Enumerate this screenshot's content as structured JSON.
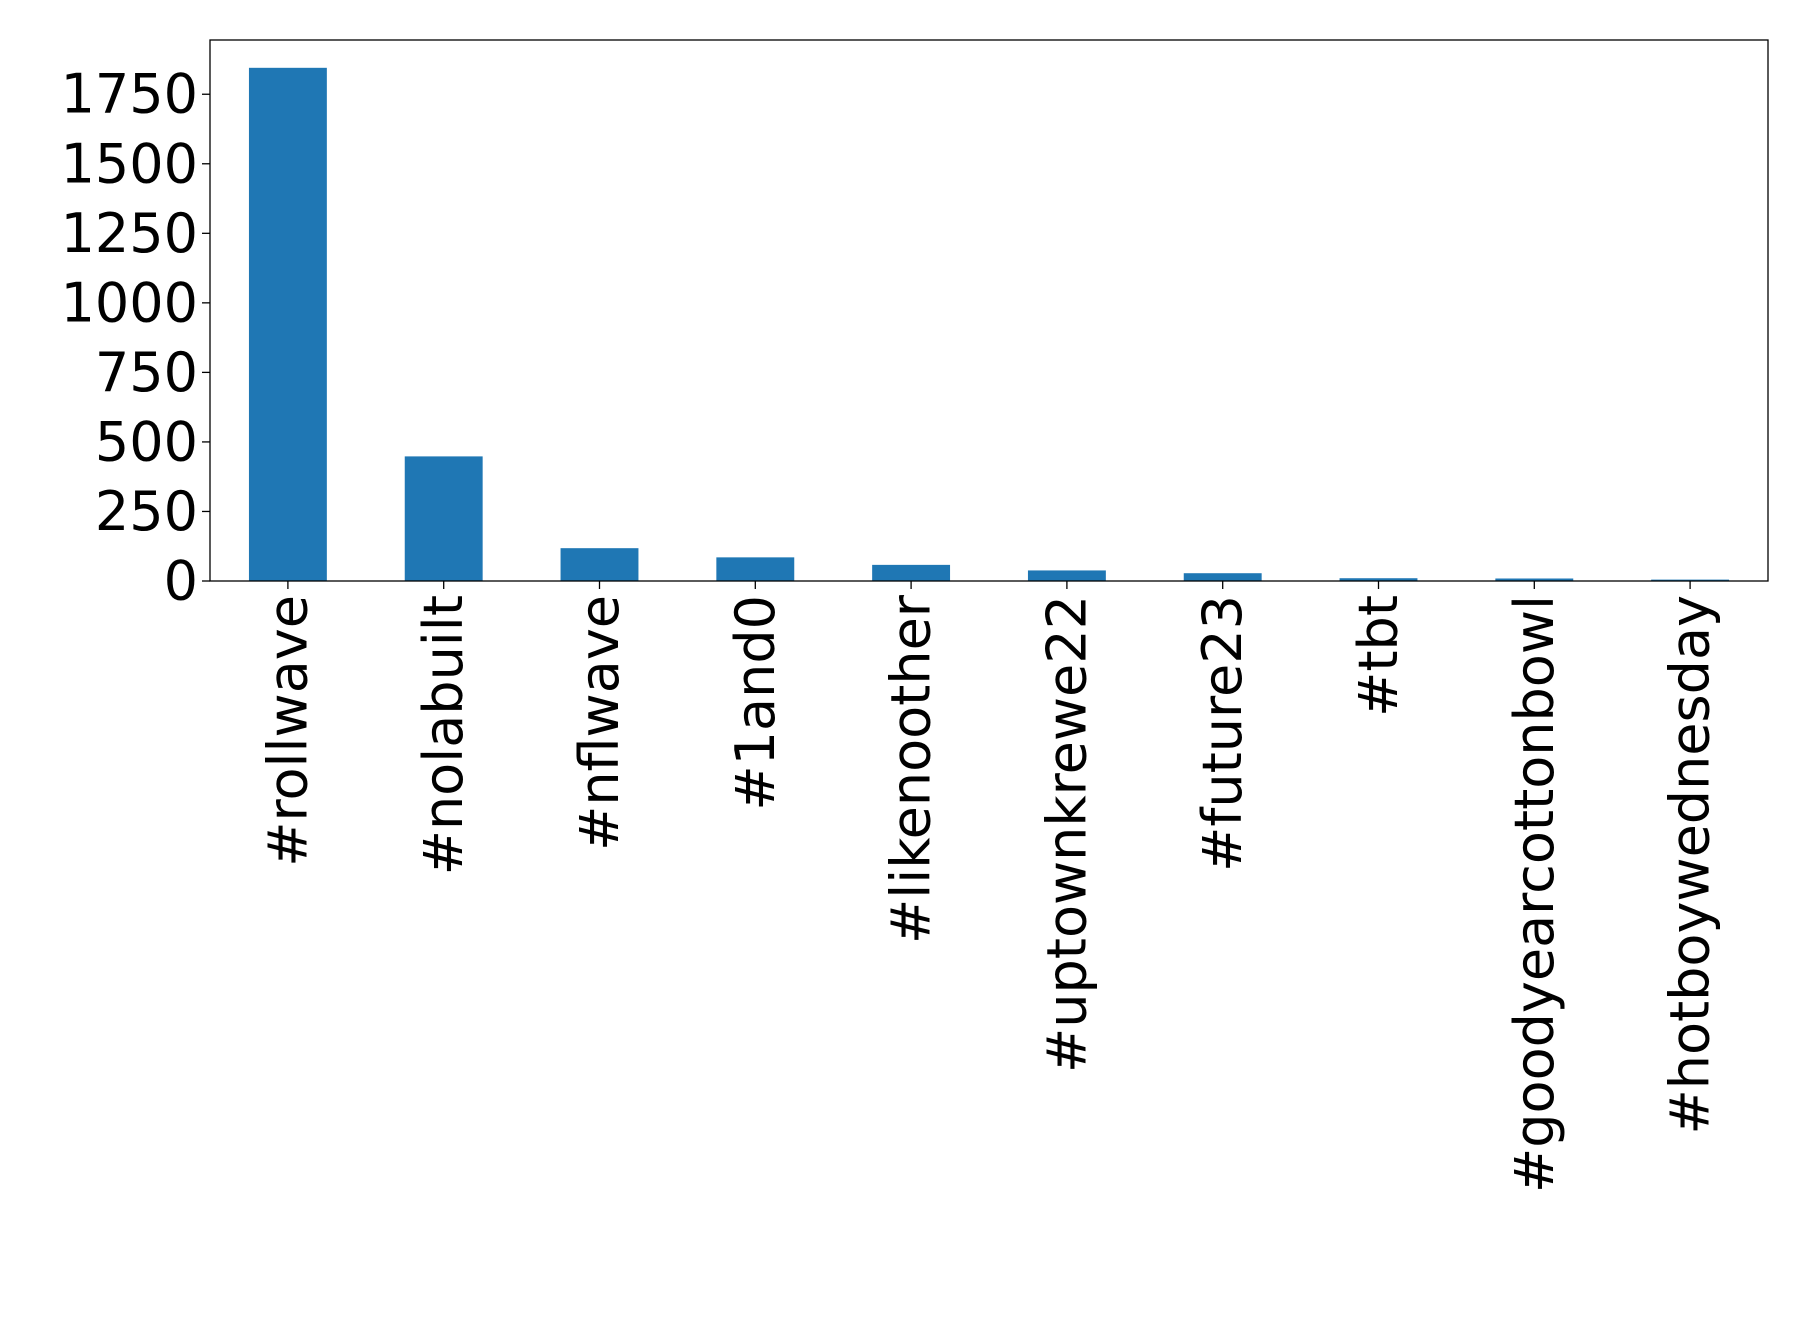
{
  "chart_data": {
    "type": "bar",
    "title": "",
    "xlabel": "",
    "ylabel": "",
    "categories": [
      "#rollwave",
      "#nolabuilt",
      "#nflwave",
      "#1and0",
      "#likenoother",
      "#uptownkrewe22",
      "#future23",
      "#tbt",
      "#goodyearcottonbowl",
      "#hotboywednesday"
    ],
    "values": [
      1845,
      448,
      118,
      85,
      58,
      38,
      28,
      10,
      9,
      5
    ],
    "ylim": [
      0,
      1945
    ],
    "yticks": [
      0,
      250,
      500,
      750,
      1000,
      1250,
      1500,
      1750
    ],
    "ytick_labels": [
      "0",
      "250",
      "500",
      "750",
      "1000",
      "1250",
      "1500",
      "1750"
    ],
    "grid": false,
    "legend": "none",
    "bar_color": "#1f77b4"
  }
}
